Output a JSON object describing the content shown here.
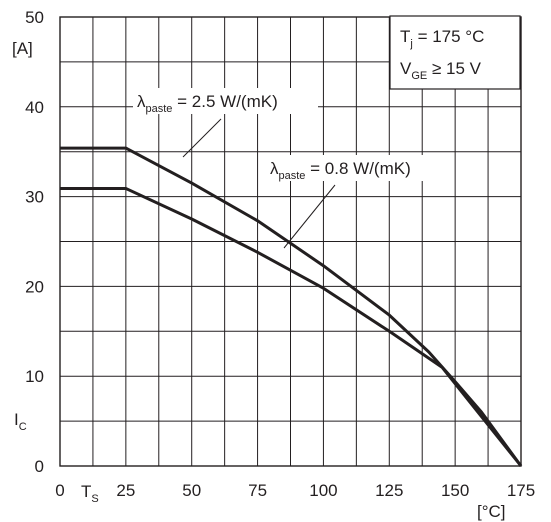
{
  "chart_data": {
    "type": "line",
    "xlabel_symbol": "T",
    "xlabel_subscript": "S",
    "xlabel_unit": "[°C]",
    "ylabel_symbol": "I",
    "ylabel_subscript": "C",
    "ylabel_unit": "[A]",
    "xlim": [
      0,
      175
    ],
    "ylim": [
      0,
      50
    ],
    "x_ticks": [
      0,
      25,
      50,
      75,
      100,
      125,
      150,
      175
    ],
    "y_ticks": [
      0,
      10,
      20,
      30,
      40,
      50
    ],
    "grid": true,
    "conditions": {
      "line1_main": "T",
      "line1_sub": "j",
      "line1_rest": " = 175 °C",
      "line2_main": "V",
      "line2_sub": "GE",
      "line2_rest": " ≥ 15 V"
    },
    "series": [
      {
        "label_symbol": "λ",
        "label_subscript": "paste",
        "label_rest": " = 2.5 W/(mK)",
        "x": [
          0,
          25,
          50,
          75,
          100,
          125,
          140,
          150,
          160,
          175
        ],
        "y": [
          35.4,
          35.4,
          31.5,
          27.3,
          22.3,
          16.8,
          12.7,
          9.4,
          6.0,
          0
        ]
      },
      {
        "label_symbol": "λ",
        "label_subscript": "paste",
        "label_rest": " = 0.8 W/(mK)",
        "x": [
          0,
          25,
          50,
          75,
          100,
          125,
          145,
          175
        ],
        "y": [
          30.9,
          30.9,
          27.5,
          23.8,
          19.8,
          15.0,
          11.0,
          0
        ]
      }
    ]
  }
}
